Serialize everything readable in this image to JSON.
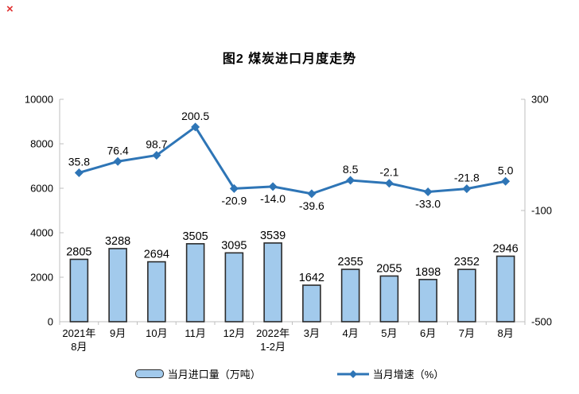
{
  "page": {
    "broken_image_mark": "×"
  },
  "chart_data": {
    "type": "bar",
    "title": "图2  煤炭进口月度走势",
    "categories": [
      "2021年\n8月",
      "9月",
      "10月",
      "11月",
      "12月",
      "2022年\n1-2月",
      "3月",
      "4月",
      "5月",
      "6月",
      "7月",
      "8月"
    ],
    "series": [
      {
        "name": "当月进口量（万吨）",
        "type": "bar",
        "yaxis": "left",
        "values": [
          2805,
          3288,
          2694,
          3505,
          3095,
          3539,
          1642,
          2355,
          2055,
          1898,
          2352,
          2946
        ]
      },
      {
        "name": "当月增速（%）",
        "type": "line",
        "yaxis": "right",
        "values": [
          35.8,
          76.4,
          98.7,
          200.5,
          -20.9,
          -14.0,
          -39.6,
          8.5,
          -2.1,
          -33.0,
          -21.8,
          5.0
        ],
        "labels": [
          "35.8",
          "76.4",
          "98.7",
          "200.5",
          "-20.9",
          "-14.0",
          "-39.6",
          "8.5",
          "-2.1",
          "-33.0",
          "-21.8",
          "5.0"
        ],
        "label_side": [
          "above",
          "above",
          "above",
          "above",
          "below",
          "below",
          "below",
          "above",
          "above",
          "below",
          "above",
          "above"
        ]
      }
    ],
    "left_axis": {
      "min": 0,
      "max": 10000,
      "ticks": [
        0,
        2000,
        4000,
        6000,
        8000,
        10000
      ]
    },
    "right_axis": {
      "min": -500,
      "max": 300,
      "ticks": [
        -500,
        -100,
        300
      ]
    },
    "grid": false,
    "legend": {
      "position": "bottom",
      "items": [
        "当月进口量（万吨）",
        "当月增速（%）"
      ]
    },
    "colors": {
      "bar_fill": "#a2caec",
      "bar_border": "#2b2b2b",
      "line": "#2e75b6",
      "axis": "#bfbfbf",
      "text": "#000000"
    }
  }
}
